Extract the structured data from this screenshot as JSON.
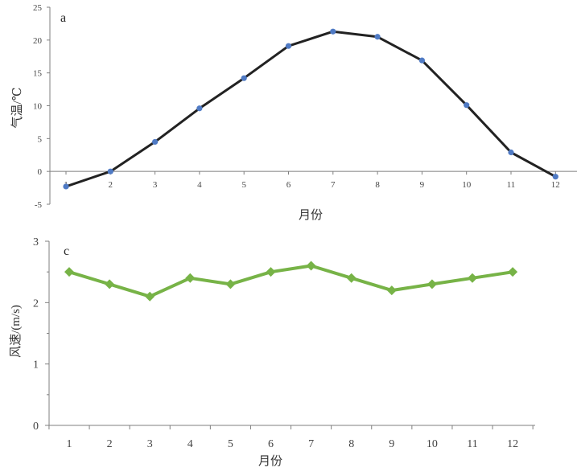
{
  "colors": {
    "temp_line": "#222222",
    "temp_marker": "#4f7ac4",
    "wind_line": "#77b347",
    "wind_marker": "#77b347",
    "axis": "#7f7f7f"
  },
  "chart_data": [
    {
      "type": "line",
      "panel_label": "a",
      "x": [
        1,
        2,
        3,
        4,
        5,
        6,
        7,
        8,
        9,
        10,
        11,
        12
      ],
      "x_tick_labels": [
        "1",
        "2",
        "3",
        "4",
        "5",
        "6",
        "7",
        "8",
        "9",
        "10",
        "11",
        "12"
      ],
      "y_ticks": [
        -5,
        0,
        5,
        10,
        15,
        20,
        25
      ],
      "y_tick_labels": [
        "-5",
        "0",
        "5",
        "10",
        "15",
        "20",
        "25"
      ],
      "ylim": [
        -5,
        25
      ],
      "xlabel": "月份",
      "ylabel": "气温/℃",
      "series": [
        {
          "values": [
            -2.3,
            0.0,
            4.5,
            9.6,
            14.2,
            19.1,
            21.3,
            20.5,
            16.9,
            10.1,
            2.9,
            -0.8
          ]
        }
      ],
      "grid": false,
      "marker": "circle"
    },
    {
      "type": "line",
      "panel_label": "c",
      "x": [
        1,
        2,
        3,
        4,
        5,
        6,
        7,
        8,
        9,
        10,
        11,
        12
      ],
      "x_tick_labels": [
        "1",
        "2",
        "3",
        "4",
        "5",
        "6",
        "7",
        "8",
        "9",
        "10",
        "11",
        "12"
      ],
      "y_ticks": [
        0,
        1,
        2,
        3
      ],
      "y_tick_labels": [
        "0",
        "1",
        "2",
        "3"
      ],
      "ylim": [
        0,
        3
      ],
      "xlabel": "月份",
      "ylabel": "风速/(m/s)",
      "series": [
        {
          "values": [
            2.5,
            2.3,
            2.1,
            2.4,
            2.3,
            2.5,
            2.6,
            2.4,
            2.2,
            2.3,
            2.4,
            2.5
          ]
        }
      ],
      "grid": false,
      "marker": "diamond"
    }
  ]
}
